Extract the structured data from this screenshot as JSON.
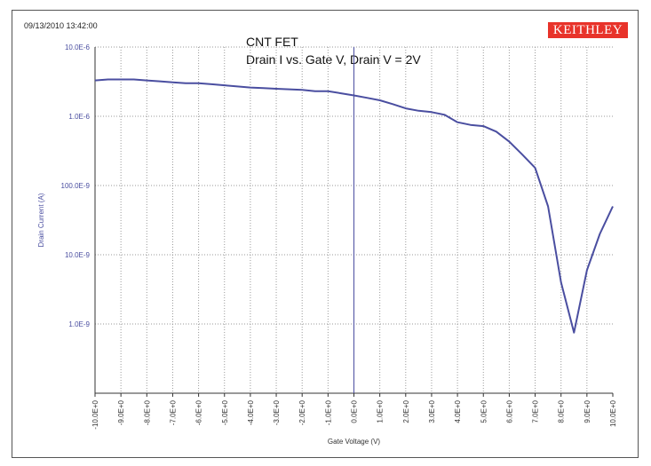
{
  "header": {
    "timestamp": "09/13/2010 13:42:00",
    "logo": "KEITHLEY",
    "title_line1": "CNT FET",
    "title_line2": "Drain I vs. Gate V, Drain V = 2V"
  },
  "colors": {
    "accent": "#4a4ea0",
    "logo_bg": "#e8332a",
    "grid": "#9a9a9a"
  },
  "chart_data": {
    "type": "line",
    "xlabel": "Gate Voltage (V)",
    "ylabel": "Drain Current (A)",
    "xlim": [
      -10,
      10
    ],
    "ylim": [
      1e-10,
      1e-05
    ],
    "yscale": "log",
    "grid": true,
    "x_tick_labels": [
      "-10.0E+0",
      "-9.0E+0",
      "-8.0E+0",
      "-7.0E+0",
      "-6.0E+0",
      "-5.0E+0",
      "-4.0E+0",
      "-3.0E+0",
      "-2.0E+0",
      "-1.0E+0",
      "0.0E+0",
      "1.0E+0",
      "2.0E+0",
      "3.0E+0",
      "4.0E+0",
      "5.0E+0",
      "6.0E+0",
      "7.0E+0",
      "8.0E+0",
      "9.0E+0",
      "10.0E+0"
    ],
    "y_tick_labels": [
      "10.0E-6",
      "1.0E-6",
      "100.0E-9",
      "10.0E-9",
      "1.0E-9"
    ],
    "y_tick_values": [
      1e-05,
      1e-06,
      1e-07,
      1e-08,
      1e-09
    ],
    "series": [
      {
        "x": [
          -10,
          -9.5,
          -9,
          -8.5,
          -8,
          -7.5,
          -7,
          -6.5,
          -6,
          -5.5,
          -5,
          -4.5,
          -4,
          -3.5,
          -3,
          -2.5,
          -2,
          -1.5,
          -1,
          -0.5,
          0,
          0.5,
          1,
          1.5,
          2,
          2.5,
          3,
          3.5,
          4,
          4.5,
          5,
          5.5,
          6,
          6.5,
          7,
          7.5,
          8,
          8.5,
          9,
          9.5,
          10
        ],
        "y": [
          3.3e-06,
          3.4e-06,
          3.4e-06,
          3.4e-06,
          3.3e-06,
          3.2e-06,
          3.1e-06,
          3e-06,
          3e-06,
          2.9e-06,
          2.8e-06,
          2.7e-06,
          2.6e-06,
          2.55e-06,
          2.5e-06,
          2.45e-06,
          2.4e-06,
          2.3e-06,
          2.3e-06,
          2.15e-06,
          2e-06,
          1.85e-06,
          1.7e-06,
          1.5e-06,
          1.3e-06,
          1.2e-06,
          1.15e-06,
          1.05e-06,
          8.2e-07,
          7.5e-07,
          7.2e-07,
          6e-07,
          4.3e-07,
          2.8e-07,
          1.8e-07,
          5e-08,
          4e-09,
          7.5e-10,
          6e-09,
          2e-08,
          5e-08
        ]
      }
    ]
  }
}
